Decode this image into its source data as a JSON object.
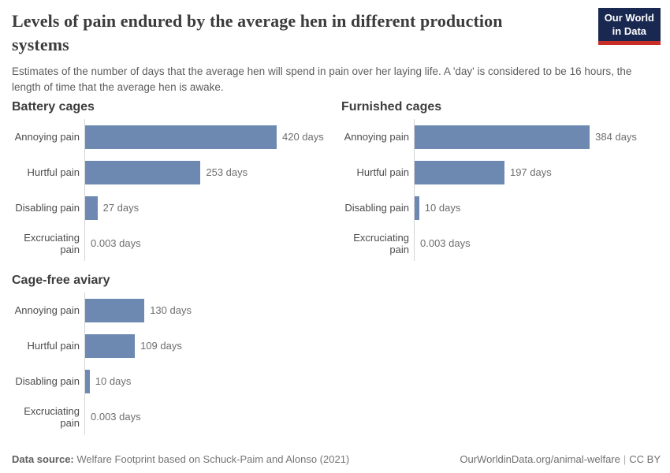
{
  "header": {
    "title": "Levels of pain endured by the average hen in different production systems",
    "subtitle": "Estimates of the number of days that the average hen will spend in pain over her laying life. A 'day' is considered to be 16 hours, the length of time that the average hen is awake.",
    "logo": {
      "line1": "Our World",
      "line2": "in Data",
      "bg_color": "#192850",
      "accent_color": "#c82d28"
    }
  },
  "chart_data": {
    "type": "bar",
    "orientation": "horizontal",
    "unit": "days",
    "bar_color": "#6e89b1",
    "axis_color": "#d4d4d4",
    "xlim": [
      0,
      420
    ],
    "categories": [
      "Annoying pain",
      "Hurtful pain",
      "Disabling pain",
      "Excruciating pain"
    ],
    "panels": [
      {
        "title": "Battery cages",
        "rows": [
          {
            "label": "Annoying pain",
            "value": 420,
            "value_label": "420 days"
          },
          {
            "label": "Hurtful pain",
            "value": 253,
            "value_label": "253 days"
          },
          {
            "label": "Disabling pain",
            "value": 27,
            "value_label": "27 days"
          },
          {
            "label": "Excruciating pain",
            "value": 0.003,
            "value_label": "0.003 days"
          }
        ]
      },
      {
        "title": "Furnished cages",
        "rows": [
          {
            "label": "Annoying pain",
            "value": 384,
            "value_label": "384 days"
          },
          {
            "label": "Hurtful pain",
            "value": 197,
            "value_label": "197 days"
          },
          {
            "label": "Disabling pain",
            "value": 10,
            "value_label": "10 days"
          },
          {
            "label": "Excruciating pain",
            "value": 0.003,
            "value_label": "0.003 days"
          }
        ]
      },
      {
        "title": "Cage-free aviary",
        "rows": [
          {
            "label": "Annoying pain",
            "value": 130,
            "value_label": "130 days"
          },
          {
            "label": "Hurtful pain",
            "value": 109,
            "value_label": "109 days"
          },
          {
            "label": "Disabling pain",
            "value": 10,
            "value_label": "10 days"
          },
          {
            "label": "Excruciating pain",
            "value": 0.003,
            "value_label": "0.003 days"
          }
        ]
      }
    ]
  },
  "footer": {
    "source_label": "Data source:",
    "source_text": " Welfare Footprint based on Schuck-Paim and Alonso (2021)",
    "link": "OurWorldinData.org/animal-welfare",
    "separator": "|",
    "license": "CC BY"
  }
}
